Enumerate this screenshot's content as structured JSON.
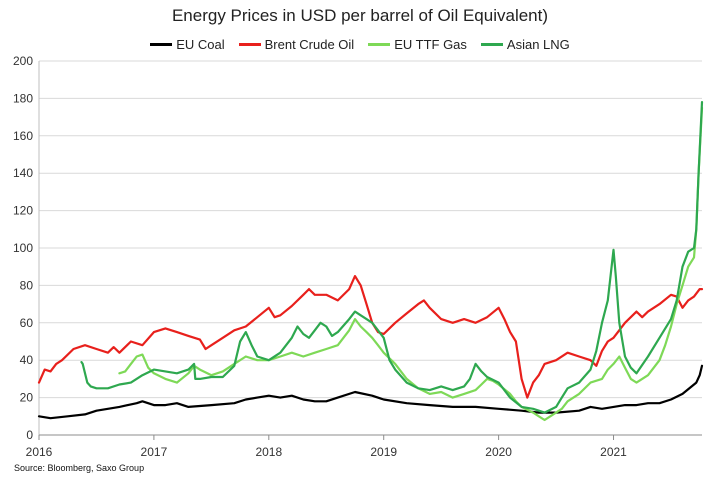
{
  "chart_data": {
    "type": "line",
    "title": "Energy Prices in USD per barrel of Oil Equivalent)",
    "source": "Source: Bloomberg, Saxo Group",
    "ylim": [
      0,
      200
    ],
    "yticks": [
      0,
      20,
      40,
      60,
      80,
      100,
      120,
      140,
      160,
      180,
      200
    ],
    "xlim": [
      2016.0,
      2021.77
    ],
    "xticks": [
      2016,
      2017,
      2018,
      2019,
      2020,
      2021
    ],
    "xtick_labels": [
      "2016",
      "2017",
      "2018",
      "2019",
      "2020",
      "2021"
    ],
    "grid": "horizontal",
    "legend": "top",
    "series": [
      {
        "name": "EU Coal",
        "color": "#000000",
        "points": [
          [
            2016.0,
            10
          ],
          [
            2016.1,
            9
          ],
          [
            2016.25,
            10
          ],
          [
            2016.4,
            11
          ],
          [
            2016.5,
            13
          ],
          [
            2016.7,
            15
          ],
          [
            2016.85,
            17
          ],
          [
            2016.9,
            18
          ],
          [
            2017.0,
            16
          ],
          [
            2017.1,
            16
          ],
          [
            2017.2,
            17
          ],
          [
            2017.3,
            15
          ],
          [
            2017.5,
            16
          ],
          [
            2017.7,
            17
          ],
          [
            2017.8,
            19
          ],
          [
            2017.9,
            20
          ],
          [
            2018.0,
            21
          ],
          [
            2018.1,
            20
          ],
          [
            2018.2,
            21
          ],
          [
            2018.3,
            19
          ],
          [
            2018.4,
            18
          ],
          [
            2018.5,
            18
          ],
          [
            2018.6,
            20
          ],
          [
            2018.75,
            23
          ],
          [
            2018.9,
            21
          ],
          [
            2019.0,
            19
          ],
          [
            2019.2,
            17
          ],
          [
            2019.4,
            16
          ],
          [
            2019.6,
            15
          ],
          [
            2019.8,
            15
          ],
          [
            2020.0,
            14
          ],
          [
            2020.2,
            13
          ],
          [
            2020.35,
            12
          ],
          [
            2020.5,
            12
          ],
          [
            2020.7,
            13
          ],
          [
            2020.8,
            15
          ],
          [
            2020.9,
            14
          ],
          [
            2021.0,
            15
          ],
          [
            2021.1,
            16
          ],
          [
            2021.2,
            16
          ],
          [
            2021.3,
            17
          ],
          [
            2021.4,
            17
          ],
          [
            2021.5,
            19
          ],
          [
            2021.6,
            22
          ],
          [
            2021.68,
            26
          ],
          [
            2021.72,
            28
          ],
          [
            2021.75,
            32
          ],
          [
            2021.77,
            37
          ]
        ]
      },
      {
        "name": "Brent Crude Oil",
        "color": "#e8201c",
        "points": [
          [
            2016.0,
            28
          ],
          [
            2016.05,
            35
          ],
          [
            2016.1,
            34
          ],
          [
            2016.15,
            38
          ],
          [
            2016.2,
            40
          ],
          [
            2016.3,
            46
          ],
          [
            2016.4,
            48
          ],
          [
            2016.5,
            46
          ],
          [
            2016.6,
            44
          ],
          [
            2016.65,
            47
          ],
          [
            2016.7,
            44
          ],
          [
            2016.8,
            50
          ],
          [
            2016.9,
            48
          ],
          [
            2017.0,
            55
          ],
          [
            2017.1,
            57
          ],
          [
            2017.2,
            55
          ],
          [
            2017.3,
            53
          ],
          [
            2017.4,
            51
          ],
          [
            2017.45,
            46
          ],
          [
            2017.5,
            48
          ],
          [
            2017.6,
            52
          ],
          [
            2017.7,
            56
          ],
          [
            2017.8,
            58
          ],
          [
            2017.9,
            63
          ],
          [
            2018.0,
            68
          ],
          [
            2018.05,
            63
          ],
          [
            2018.1,
            64
          ],
          [
            2018.2,
            69
          ],
          [
            2018.3,
            75
          ],
          [
            2018.35,
            78
          ],
          [
            2018.4,
            75
          ],
          [
            2018.5,
            75
          ],
          [
            2018.6,
            72
          ],
          [
            2018.7,
            78
          ],
          [
            2018.75,
            85
          ],
          [
            2018.8,
            80
          ],
          [
            2018.85,
            70
          ],
          [
            2018.9,
            60
          ],
          [
            2018.95,
            55
          ],
          [
            2019.0,
            54
          ],
          [
            2019.1,
            60
          ],
          [
            2019.2,
            65
          ],
          [
            2019.3,
            70
          ],
          [
            2019.35,
            72
          ],
          [
            2019.4,
            68
          ],
          [
            2019.5,
            62
          ],
          [
            2019.6,
            60
          ],
          [
            2019.7,
            62
          ],
          [
            2019.8,
            60
          ],
          [
            2019.9,
            63
          ],
          [
            2020.0,
            68
          ],
          [
            2020.05,
            62
          ],
          [
            2020.1,
            55
          ],
          [
            2020.15,
            50
          ],
          [
            2020.2,
            30
          ],
          [
            2020.25,
            20
          ],
          [
            2020.3,
            28
          ],
          [
            2020.35,
            32
          ],
          [
            2020.4,
            38
          ],
          [
            2020.5,
            40
          ],
          [
            2020.6,
            44
          ],
          [
            2020.7,
            42
          ],
          [
            2020.8,
            40
          ],
          [
            2020.85,
            37
          ],
          [
            2020.9,
            45
          ],
          [
            2020.95,
            50
          ],
          [
            2021.0,
            52
          ],
          [
            2021.1,
            60
          ],
          [
            2021.2,
            66
          ],
          [
            2021.25,
            63
          ],
          [
            2021.3,
            66
          ],
          [
            2021.4,
            70
          ],
          [
            2021.5,
            75
          ],
          [
            2021.55,
            74
          ],
          [
            2021.6,
            68
          ],
          [
            2021.65,
            72
          ],
          [
            2021.7,
            74
          ],
          [
            2021.75,
            78
          ],
          [
            2021.77,
            78
          ]
        ]
      },
      {
        "name": "EU TTF Gas",
        "color": "#7ed957",
        "points": [
          [
            2016.7,
            33
          ],
          [
            2016.75,
            34
          ],
          [
            2016.8,
            38
          ],
          [
            2016.85,
            42
          ],
          [
            2016.9,
            43
          ],
          [
            2016.95,
            36
          ],
          [
            2017.0,
            33
          ],
          [
            2017.1,
            30
          ],
          [
            2017.2,
            28
          ],
          [
            2017.3,
            33
          ],
          [
            2017.35,
            37
          ],
          [
            2017.4,
            35
          ],
          [
            2017.5,
            32
          ],
          [
            2017.6,
            34
          ],
          [
            2017.7,
            38
          ],
          [
            2017.8,
            42
          ],
          [
            2017.9,
            40
          ],
          [
            2018.0,
            40
          ],
          [
            2018.1,
            42
          ],
          [
            2018.2,
            44
          ],
          [
            2018.3,
            42
          ],
          [
            2018.4,
            44
          ],
          [
            2018.5,
            46
          ],
          [
            2018.6,
            48
          ],
          [
            2018.7,
            56
          ],
          [
            2018.75,
            62
          ],
          [
            2018.8,
            58
          ],
          [
            2018.85,
            55
          ],
          [
            2018.9,
            52
          ],
          [
            2018.95,
            48
          ],
          [
            2019.0,
            44
          ],
          [
            2019.1,
            38
          ],
          [
            2019.2,
            30
          ],
          [
            2019.3,
            25
          ],
          [
            2019.4,
            22
          ],
          [
            2019.5,
            23
          ],
          [
            2019.6,
            20
          ],
          [
            2019.7,
            22
          ],
          [
            2019.8,
            24
          ],
          [
            2019.85,
            27
          ],
          [
            2019.9,
            30
          ],
          [
            2019.95,
            29
          ],
          [
            2020.0,
            27
          ],
          [
            2020.1,
            22
          ],
          [
            2020.15,
            18
          ],
          [
            2020.2,
            15
          ],
          [
            2020.3,
            12
          ],
          [
            2020.35,
            10
          ],
          [
            2020.4,
            8
          ],
          [
            2020.45,
            10
          ],
          [
            2020.5,
            12
          ],
          [
            2020.55,
            14
          ],
          [
            2020.6,
            18
          ],
          [
            2020.7,
            22
          ],
          [
            2020.8,
            28
          ],
          [
            2020.9,
            30
          ],
          [
            2020.95,
            35
          ],
          [
            2021.0,
            38
          ],
          [
            2021.05,
            42
          ],
          [
            2021.1,
            36
          ],
          [
            2021.15,
            30
          ],
          [
            2021.2,
            28
          ],
          [
            2021.3,
            32
          ],
          [
            2021.4,
            40
          ],
          [
            2021.45,
            48
          ],
          [
            2021.5,
            58
          ],
          [
            2021.55,
            70
          ],
          [
            2021.6,
            80
          ],
          [
            2021.65,
            90
          ],
          [
            2021.7,
            95
          ],
          [
            2021.72,
            110
          ],
          [
            2021.74,
            140
          ],
          [
            2021.77,
            175
          ]
        ]
      },
      {
        "name": "Asian LNG",
        "color": "#2ea84f",
        "points": [
          [
            2016.37,
            39
          ],
          [
            2016.38,
            38
          ],
          [
            2016.4,
            33
          ],
          [
            2016.42,
            28
          ],
          [
            2016.45,
            26
          ],
          [
            2016.5,
            25
          ],
          [
            2016.6,
            25
          ],
          [
            2016.7,
            27
          ],
          [
            2016.8,
            28
          ],
          [
            2016.9,
            32
          ],
          [
            2017.0,
            35
          ],
          [
            2017.1,
            34
          ],
          [
            2017.2,
            33
          ],
          [
            2017.3,
            35
          ],
          [
            2017.35,
            38
          ],
          [
            2017.36,
            30
          ],
          [
            2017.4,
            30
          ],
          [
            2017.5,
            31
          ],
          [
            2017.6,
            31
          ],
          [
            2017.7,
            37
          ],
          [
            2017.75,
            50
          ],
          [
            2017.8,
            55
          ],
          [
            2017.85,
            48
          ],
          [
            2017.9,
            42
          ],
          [
            2018.0,
            40
          ],
          [
            2018.1,
            44
          ],
          [
            2018.2,
            52
          ],
          [
            2018.25,
            58
          ],
          [
            2018.3,
            54
          ],
          [
            2018.35,
            52
          ],
          [
            2018.4,
            56
          ],
          [
            2018.45,
            60
          ],
          [
            2018.5,
            58
          ],
          [
            2018.55,
            53
          ],
          [
            2018.6,
            55
          ],
          [
            2018.7,
            62
          ],
          [
            2018.75,
            66
          ],
          [
            2018.8,
            64
          ],
          [
            2018.85,
            62
          ],
          [
            2018.9,
            60
          ],
          [
            2018.95,
            56
          ],
          [
            2019.0,
            52
          ],
          [
            2019.05,
            40
          ],
          [
            2019.1,
            35
          ],
          [
            2019.2,
            28
          ],
          [
            2019.3,
            25
          ],
          [
            2019.4,
            24
          ],
          [
            2019.5,
            26
          ],
          [
            2019.6,
            24
          ],
          [
            2019.7,
            26
          ],
          [
            2019.75,
            30
          ],
          [
            2019.8,
            38
          ],
          [
            2019.85,
            34
          ],
          [
            2019.9,
            31
          ],
          [
            2020.0,
            28
          ],
          [
            2020.1,
            20
          ],
          [
            2020.2,
            15
          ],
          [
            2020.3,
            14
          ],
          [
            2020.4,
            12
          ],
          [
            2020.5,
            15
          ],
          [
            2020.55,
            20
          ],
          [
            2020.6,
            25
          ],
          [
            2020.7,
            28
          ],
          [
            2020.8,
            35
          ],
          [
            2020.85,
            45
          ],
          [
            2020.9,
            60
          ],
          [
            2020.95,
            72
          ],
          [
            2021.0,
            99
          ],
          [
            2021.02,
            85
          ],
          [
            2021.05,
            60
          ],
          [
            2021.1,
            42
          ],
          [
            2021.15,
            36
          ],
          [
            2021.2,
            33
          ],
          [
            2021.3,
            42
          ],
          [
            2021.4,
            52
          ],
          [
            2021.5,
            62
          ],
          [
            2021.55,
            72
          ],
          [
            2021.6,
            90
          ],
          [
            2021.65,
            98
          ],
          [
            2021.7,
            100
          ],
          [
            2021.72,
            110
          ],
          [
            2021.74,
            140
          ],
          [
            2021.77,
            178
          ]
        ]
      }
    ]
  }
}
